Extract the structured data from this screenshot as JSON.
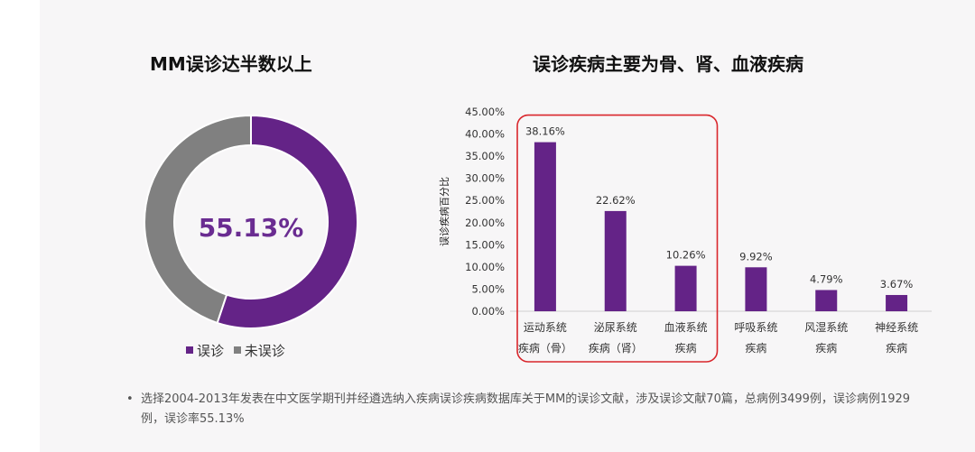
{
  "left_title": "MM误诊达半数以上",
  "right_title": "误诊疾病主要为骨、肾、血液疾病",
  "footnote": "选择2004-2013年发表在中文医学期刊并经遴选纳入疾病误诊疾病数据库关于MM的误诊文献，涉及误诊文献70篇，总病例3499例，误诊病例1929例，误诊率55.13%",
  "footnote_bullet": "•",
  "colors": {
    "purple": "#642387",
    "gray": "#808080",
    "highlight_box": "#d9262c"
  },
  "chart_data": [
    {
      "type": "pie",
      "center_label": "55.13%",
      "slices": [
        {
          "label": "误诊",
          "value": 55.13,
          "color": "#642387"
        },
        {
          "label": "未误诊",
          "value": 44.87,
          "color": "#808080"
        }
      ],
      "legend_position": "bottom"
    },
    {
      "type": "bar",
      "ylabel": "误诊疾病百分比",
      "ylim": [
        0,
        45
      ],
      "yticks": [
        "0.00%",
        "5.00%",
        "10.00%",
        "15.00%",
        "20.00%",
        "25.00%",
        "30.00%",
        "35.00%",
        "40.00%",
        "45.00%"
      ],
      "categories": [
        [
          "运动系统",
          "疾病（骨）"
        ],
        [
          "泌尿系统",
          "疾病（肾）"
        ],
        [
          "血液系统",
          "疾病"
        ],
        [
          "呼吸系统",
          "疾病"
        ],
        [
          "风湿系统",
          "疾病"
        ],
        [
          "神经系统",
          "疾病"
        ]
      ],
      "values": [
        38.16,
        22.62,
        10.26,
        9.92,
        4.79,
        3.67
      ],
      "value_labels": [
        "38.16%",
        "22.62%",
        "10.26%",
        "9.92%",
        "4.79%",
        "3.67%"
      ],
      "highlighted_categories": [
        0,
        1,
        2
      ],
      "grid": false
    }
  ]
}
